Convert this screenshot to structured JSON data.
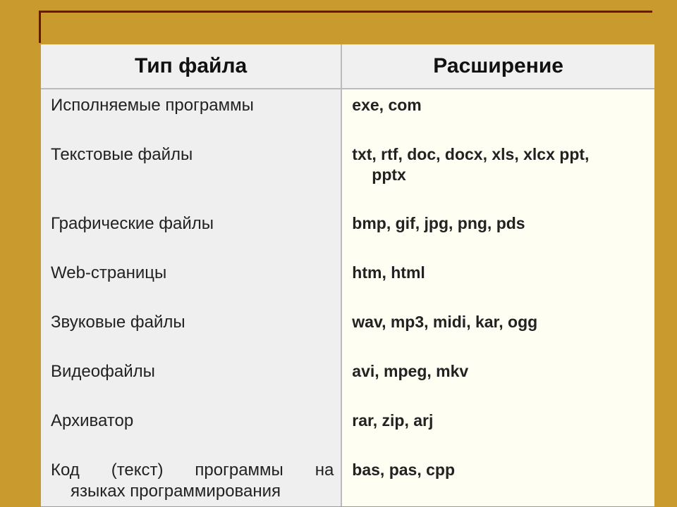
{
  "slide": {
    "background_color": "#c99a2e",
    "frame_color": "#6a1414",
    "table": {
      "type": "table",
      "header_bg": "#f0f0f0",
      "type_col_bg": "#efefef",
      "ext_col_bg": "#fffef3",
      "border_color": "#bbbbbb",
      "header_fontsize": 30,
      "cell_fontsize": 24,
      "ext_fontsize": 23,
      "columns": [
        "Тип файла",
        "Расширение"
      ],
      "rows": [
        {
          "type": "Исполняемые программы",
          "ext": "exe, com"
        },
        {
          "type": "Текстовые файлы",
          "ext_line1": "txt, rtf, doc, docx, xls, xlcx ppt,",
          "ext_line2": "pptx"
        },
        {
          "type": "Графические файлы",
          "ext": "bmp, gif, jpg, png, pds"
        },
        {
          "type": "Web-страницы",
          "ext": "htm, html"
        },
        {
          "type": "Звуковые файлы",
          "ext": "wav, mp3, midi, kar, ogg"
        },
        {
          "type": "Видеофайлы",
          "ext": "avi, mpeg, mkv"
        },
        {
          "type": "Архиватор",
          "ext": "rar, zip, arj"
        },
        {
          "type_line1": "Код (текст) программы на",
          "type_line2": "языках программирования",
          "ext": "bas, pas, cpp"
        }
      ]
    }
  }
}
